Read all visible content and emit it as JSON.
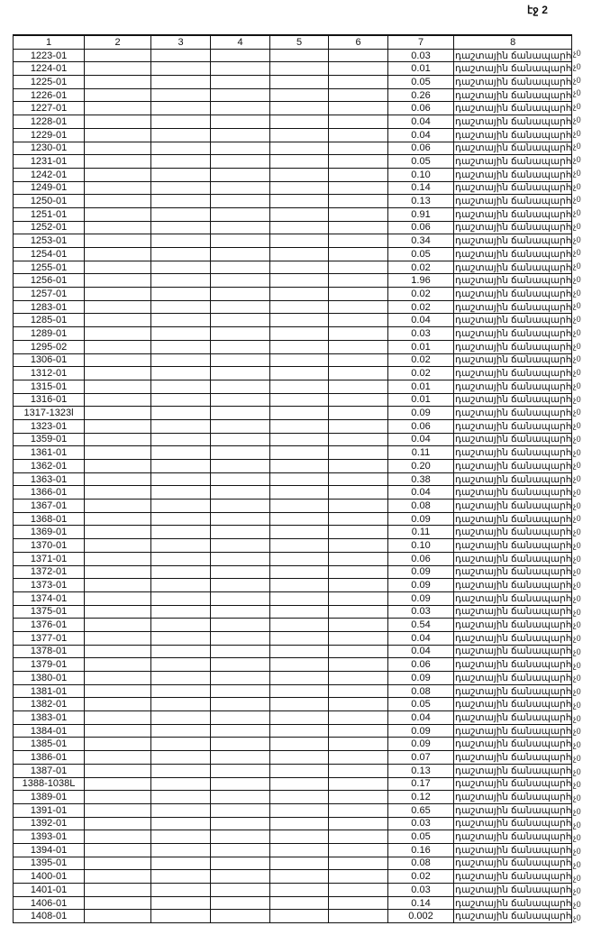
{
  "page_label": "էջ 2",
  "columns": [
    "1",
    "2",
    "3",
    "4",
    "5",
    "6",
    "7",
    "8"
  ],
  "road_type": "դաշտային ճանապարհ",
  "margin_fragment": "չ0",
  "rows": [
    [
      "1223-01",
      "0.03"
    ],
    [
      "1224-01",
      "0.01"
    ],
    [
      "1225-01",
      "0.05"
    ],
    [
      "1226-01",
      "0.26"
    ],
    [
      "1227-01",
      "0.06"
    ],
    [
      "1228-01",
      "0.04"
    ],
    [
      "1229-01",
      "0.04"
    ],
    [
      "1230-01",
      "0.06"
    ],
    [
      "1231-01",
      "0.05"
    ],
    [
      "1242-01",
      "0.10"
    ],
    [
      "1249-01",
      "0.14"
    ],
    [
      "1250-01",
      "0.13"
    ],
    [
      "1251-01",
      "0.91"
    ],
    [
      "1252-01",
      "0.06"
    ],
    [
      "1253-01",
      "0.34"
    ],
    [
      "1254-01",
      "0.05"
    ],
    [
      "1255-01",
      "0.02"
    ],
    [
      "1256-01",
      "1.96"
    ],
    [
      "1257-01",
      "0.02"
    ],
    [
      "1283-01",
      "0.02"
    ],
    [
      "1285-01",
      "0.04"
    ],
    [
      "1289-01",
      "0.03"
    ],
    [
      "1295-02",
      "0.01"
    ],
    [
      "1306-01",
      "0.02"
    ],
    [
      "1312-01",
      "0.02"
    ],
    [
      "1315-01",
      "0.01"
    ],
    [
      "1316-01",
      "0.01"
    ],
    [
      "1317-1323l",
      "0.09"
    ],
    [
      "1323-01",
      "0.06"
    ],
    [
      "1359-01",
      "0.04"
    ],
    [
      "1361-01",
      "0.11"
    ],
    [
      "1362-01",
      "0.20"
    ],
    [
      "1363-01",
      "0.38"
    ],
    [
      "1366-01",
      "0.04"
    ],
    [
      "1367-01",
      "0.08"
    ],
    [
      "1368-01",
      "0.09"
    ],
    [
      "1369-01",
      "0.11"
    ],
    [
      "1370-01",
      "0.10"
    ],
    [
      "1371-01",
      "0.06"
    ],
    [
      "1372-01",
      "0.09"
    ],
    [
      "1373-01",
      "0.09"
    ],
    [
      "1374-01",
      "0.09"
    ],
    [
      "1375-01",
      "0.03"
    ],
    [
      "1376-01",
      "0.54"
    ],
    [
      "1377-01",
      "0.04"
    ],
    [
      "1378-01",
      "0.04"
    ],
    [
      "1379-01",
      "0.06"
    ],
    [
      "1380-01",
      "0.09"
    ],
    [
      "1381-01",
      "0.08"
    ],
    [
      "1382-01",
      "0.05"
    ],
    [
      "1383-01",
      "0.04"
    ],
    [
      "1384-01",
      "0.09"
    ],
    [
      "1385-01",
      "0.09"
    ],
    [
      "1386-01",
      "0.07"
    ],
    [
      "1387-01",
      "0.13"
    ],
    [
      "1388-1038L",
      "0.17"
    ],
    [
      "1389-01",
      "0.12"
    ],
    [
      "1391-01",
      "0.65"
    ],
    [
      "1392-01",
      "0.03"
    ],
    [
      "1393-01",
      "0.05"
    ],
    [
      "1394-01",
      "0.16"
    ],
    [
      "1395-01",
      "0.08"
    ],
    [
      "1400-01",
      "0.02"
    ],
    [
      "1401-01",
      "0.03"
    ],
    [
      "1406-01",
      "0.14"
    ],
    [
      "1408-01",
      "0.002"
    ]
  ]
}
